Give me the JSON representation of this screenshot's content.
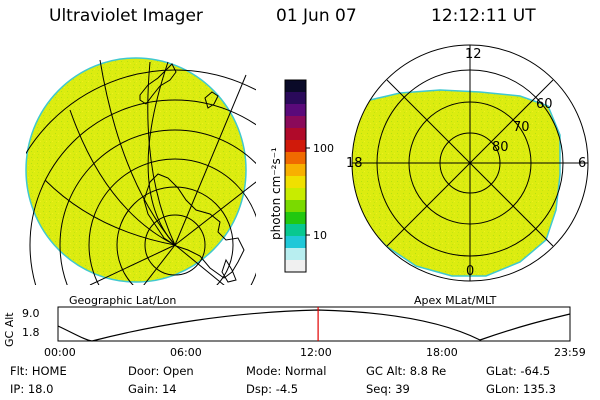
{
  "header": {
    "instrument": "Ultraviolet Imager",
    "date": "01 Jun 07",
    "time": "12:12:11 UT"
  },
  "colorbar": {
    "unit_label": "photon cm⁻²s⁻¹",
    "ticks": [
      "100",
      "10"
    ],
    "colors": [
      "#0a0a28",
      "#2a0a5a",
      "#5a0a7a",
      "#8a0a5a",
      "#b00a2a",
      "#d01a0a",
      "#f06a00",
      "#f8b000",
      "#f0e000",
      "#c8ec00",
      "#7ada00",
      "#22c810",
      "#08c890",
      "#20c8d8",
      "#b8eef0",
      "#f0f0f0"
    ]
  },
  "left_panel": {
    "label": "Geographic Lat/Lon",
    "fill_color": "#dcec10"
  },
  "right_panel": {
    "label": "Apex MLat/MLT",
    "fill_color": "#dcec10",
    "mlt_labels": {
      "top": "12",
      "left": "18",
      "right": "6",
      "bottom": "0"
    },
    "mlat_labels": [
      "60",
      "70",
      "80"
    ]
  },
  "altitude_plot": {
    "y_axis_label": "GC Alt",
    "y_ticks": [
      "9.0",
      "1.8"
    ],
    "x_ticks": [
      "00:00",
      "06:00",
      "12:00",
      "18:00",
      "23:59"
    ],
    "current_time_fraction": 0.508,
    "marker_color": "#e00000"
  },
  "info_rows": [
    [
      {
        "key": "Flt:",
        "value": "HOME"
      },
      {
        "key": "Door:",
        "value": "Open"
      },
      {
        "key": "Mode:",
        "value": "Normal"
      },
      {
        "key": "GC Alt:",
        "value": "8.8 Re"
      },
      {
        "key": "GLat:",
        "value": "-64.5"
      }
    ],
    [
      {
        "key": "IP:",
        "value": "18.0"
      },
      {
        "key": "Gain:",
        "value": "14"
      },
      {
        "key": "Dsp:",
        "value": "-4.5"
      },
      {
        "key": "Seq:",
        "value": "39"
      },
      {
        "key": "GLon:",
        "value": "135.3"
      }
    ]
  ]
}
